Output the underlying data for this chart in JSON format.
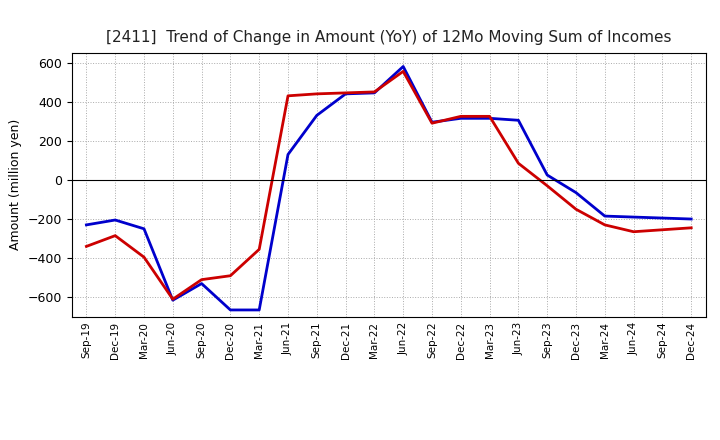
{
  "title": "[2411]  Trend of Change in Amount (YoY) of 12Mo Moving Sum of Incomes",
  "ylabel": "Amount (million yen)",
  "background_color": "#ffffff",
  "grid_color": "#aaaaaa",
  "x_labels": [
    "Sep-19",
    "Dec-19",
    "Mar-20",
    "Jun-20",
    "Sep-20",
    "Dec-20",
    "Mar-21",
    "Jun-21",
    "Sep-21",
    "Dec-21",
    "Mar-22",
    "Jun-22",
    "Sep-22",
    "Dec-22",
    "Mar-23",
    "Jun-23",
    "Sep-23",
    "Dec-23",
    "Mar-24",
    "Jun-24",
    "Sep-24",
    "Dec-24"
  ],
  "ordinary_income": [
    -230,
    -205,
    -250,
    -615,
    -530,
    -665,
    -665,
    130,
    330,
    440,
    445,
    580,
    295,
    315,
    315,
    305,
    25,
    -65,
    -185,
    -190,
    -195,
    -200
  ],
  "net_income": [
    -340,
    -285,
    -395,
    -610,
    -510,
    -490,
    -355,
    430,
    440,
    445,
    450,
    555,
    290,
    325,
    325,
    85,
    -30,
    -150,
    -230,
    -265,
    -255,
    -245
  ],
  "ylim": [
    -700,
    650
  ],
  "yticks": [
    -600,
    -400,
    -200,
    0,
    200,
    400,
    600
  ],
  "line_color_ordinary": "#0000cc",
  "line_color_net": "#cc0000",
  "line_width": 2.0
}
